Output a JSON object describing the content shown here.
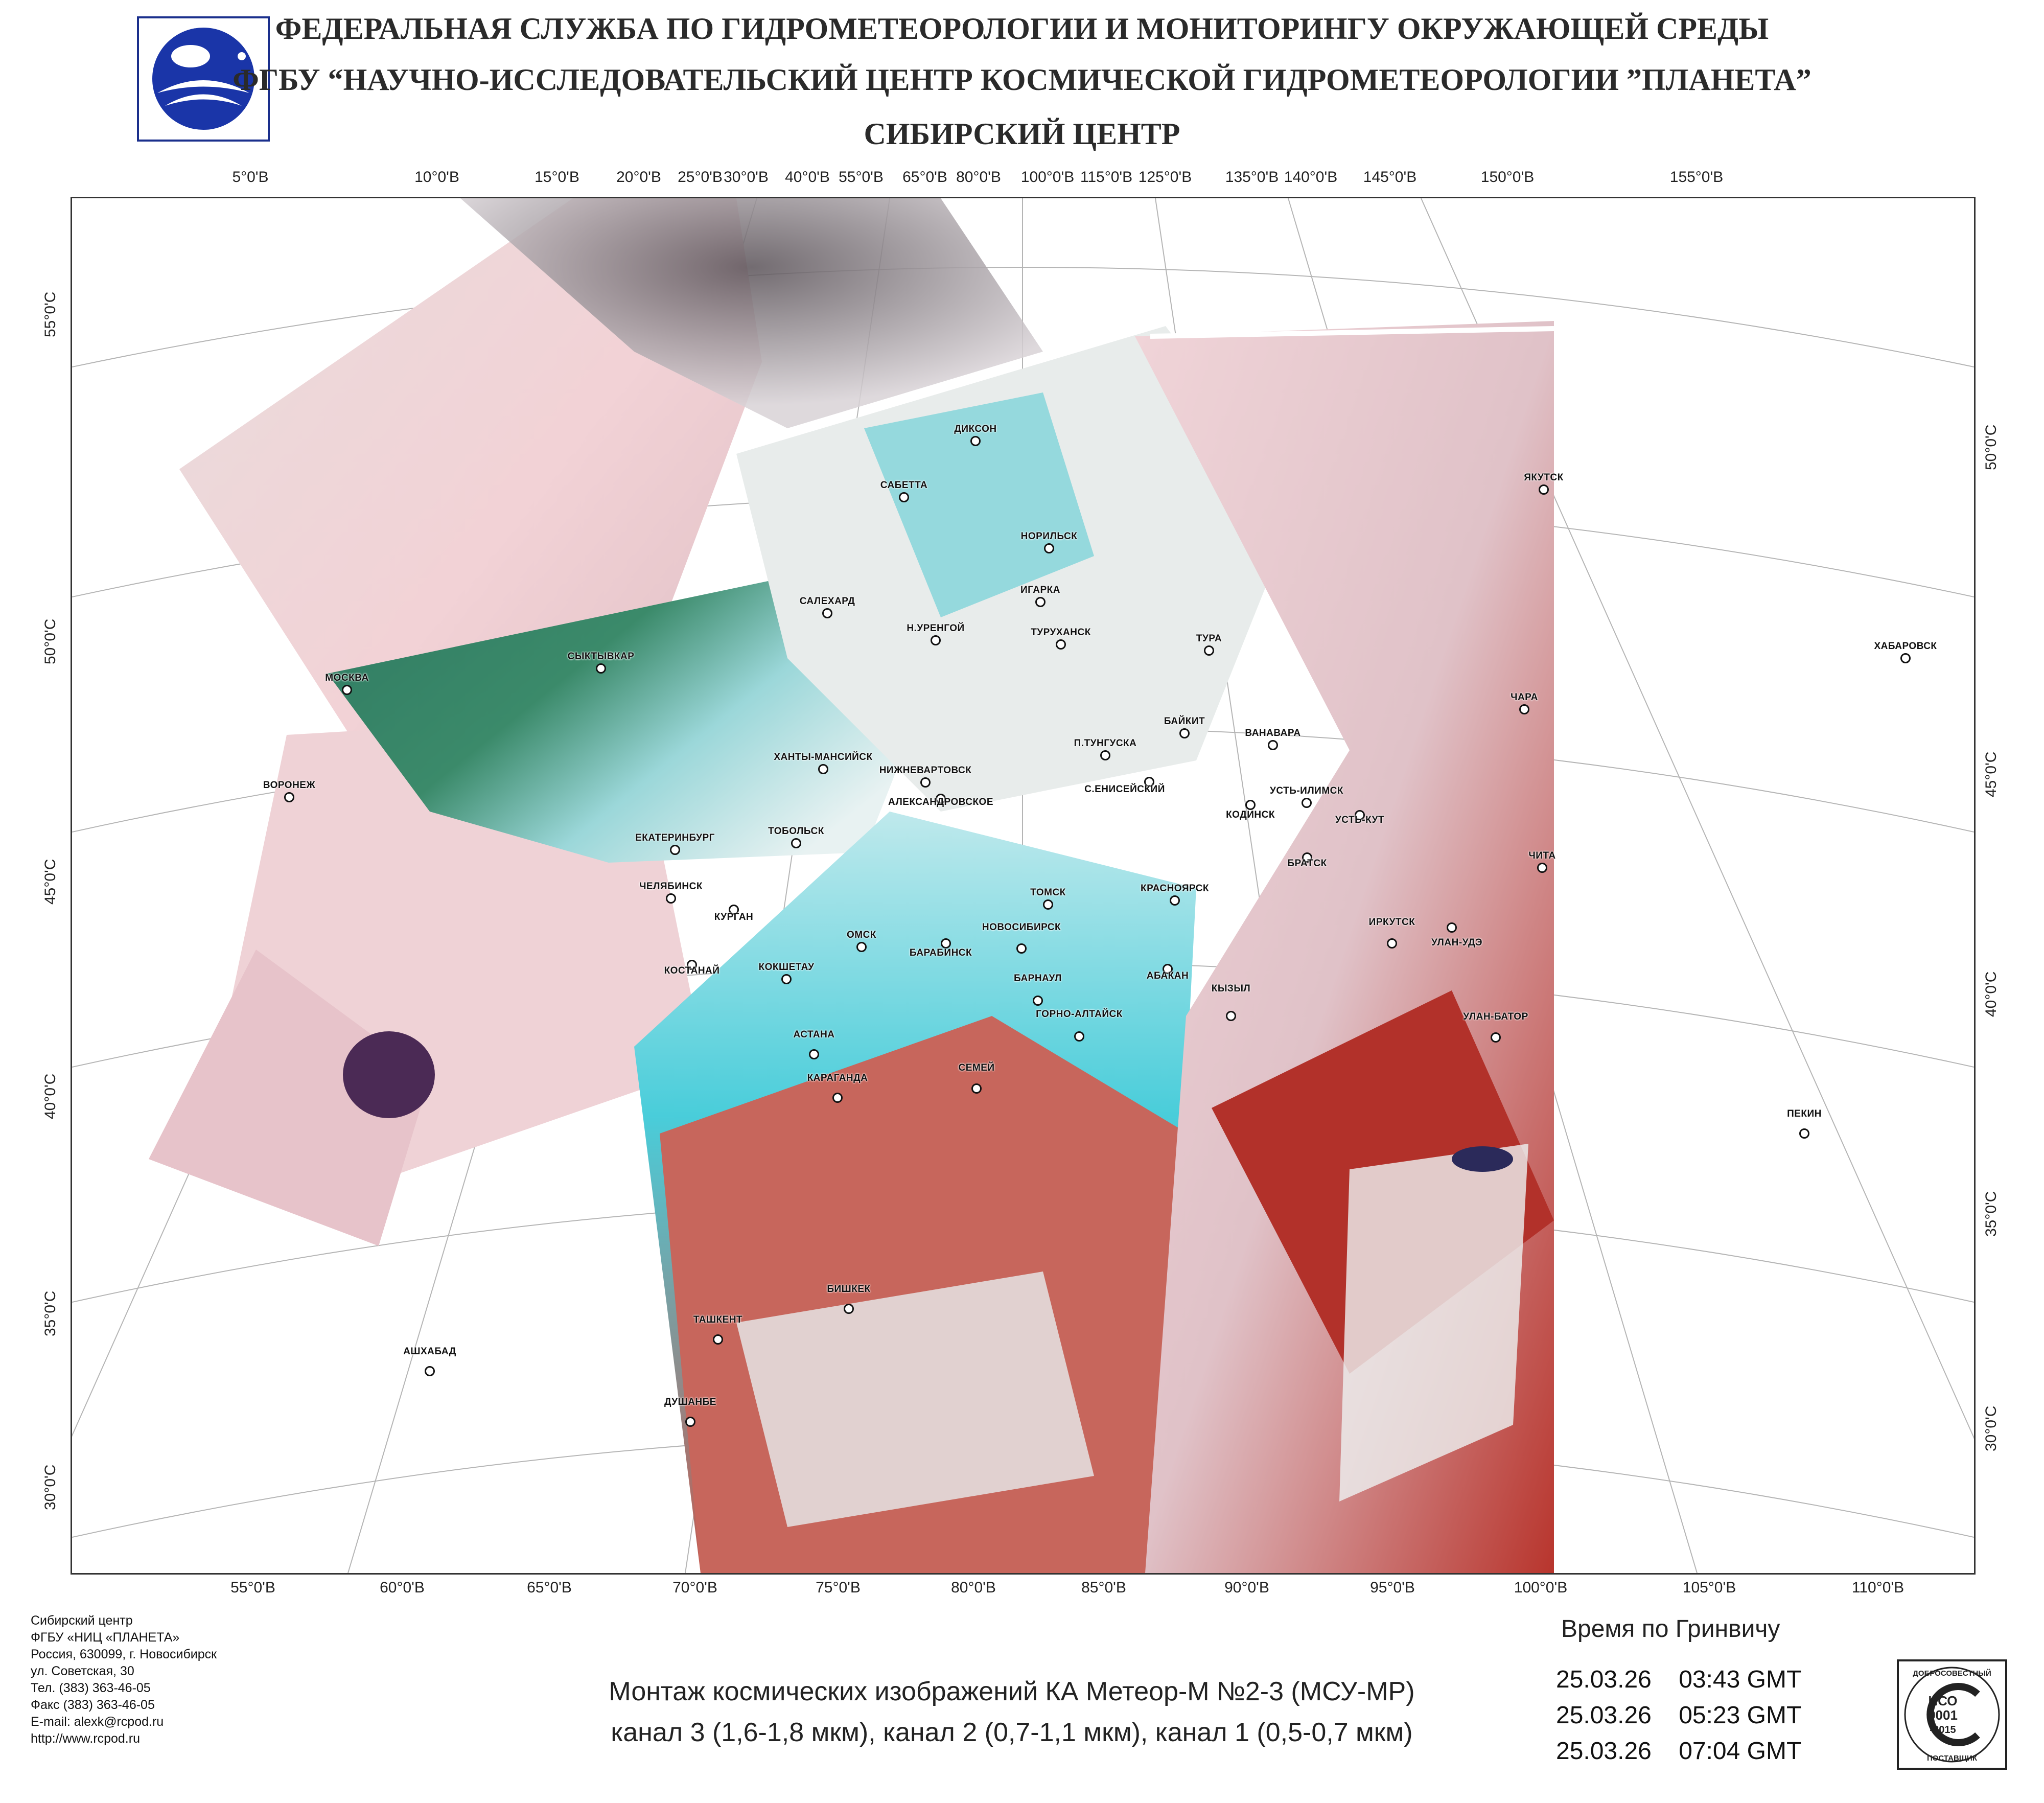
{
  "header": {
    "line1": "ФЕДЕРАЛЬНАЯ СЛУЖБА ПО ГИДРОМЕТЕОРОЛОГИИ И МОНИТОРИНГУ ОКРУЖАЮЩЕЙ СРЕДЫ",
    "line2": "ФГБУ “НАУЧНО-ИССЛЕДОВАТЕЛЬСКИЙ ЦЕНТР КОСМИЧЕСКОЙ ГИДРОМЕТЕОРОЛОГИИ ”ПЛАНЕТА”",
    "line3": "СИБИРСКИЙ  ЦЕНТР"
  },
  "map": {
    "top_ticks": [
      "5°0'В",
      "10°0'В",
      "15°0'В",
      "20°0'В",
      "25°0'В",
      "30°0'В",
      "40°0'В",
      "55°0'В",
      "65°0'В",
      "80°0'В",
      "100°0'В",
      "115°0'В",
      "125°0'В",
      "135°0'В",
      "140°0'В",
      "145°0'В",
      "150°0'В",
      "155°0'В"
    ],
    "bottom_ticks": [
      "55°0'В",
      "60°0'В",
      "65°0'В",
      "70°0'В",
      "75°0'В",
      "80°0'В",
      "85°0'В",
      "90°0'В",
      "95°0'В",
      "100°0'В",
      "105°0'В",
      "110°0'В"
    ],
    "left_ticks": [
      "55°0'С",
      "50°0'С",
      "45°0'С",
      "40°0'С",
      "35°0'С",
      "30°0'С"
    ],
    "right_ticks": [
      "50°0'С",
      "45°0'С",
      "40°0'С",
      "35°0'С",
      "30°0'С"
    ],
    "cities": [
      "ДИКСОН",
      "САБЕТТА",
      "НОРИЛЬСК",
      "ИГАРКА",
      "САЛЕХАРД",
      "Н.УРЕНГОЙ",
      "ТУРУХАНСК",
      "ТУРА",
      "ЯКУТСК",
      "МОСКВА",
      "СЫКТЫВКАР",
      "ВОРОНЕЖ",
      "ХАНТЫ-МАНСИЙСК",
      "НИЖНЕВАРТОВСК",
      "АЛЕКСАНДРОВСКОЕ",
      "П.ТУНГУСКА",
      "БАЙКИТ",
      "ВАНАВАРА",
      "С.ЕНИСЕЙСКИЙ",
      "КОДИНСК",
      "УСТЬ-ИЛИМСК",
      "УСТЬ-КУТ",
      "ЧАРА",
      "ХАБАРОВСК",
      "ЧИТА",
      "ЕКАТЕРИНБУРГ",
      "ТОБОЛЬСК",
      "ЧЕЛЯБИНСК",
      "КУРГАН",
      "ТОМСК",
      "КРАСНОЯРСК",
      "БРАТСК",
      "ОМСК",
      "НОВОСИБИРСК",
      "БАРАБИНСК",
      "КОСТАНАЙ",
      "КОКШЕТАУ",
      "ИРКУТСК",
      "УЛАН-УДЭ",
      "АБАКАН",
      "БАРНАУЛ",
      "КЫЗЫЛ",
      "ГОРНО-АЛТАЙСК",
      "УЛАН-БАТОР",
      "АСТАНА",
      "КАРАГАНДА",
      "СЕМЕЙ",
      "ПЕКИН",
      "БИШКЕК",
      "ТАШКЕНТ",
      "АШХАБАД",
      "ДУШАНБЕ"
    ]
  },
  "contact": {
    "lines": [
      "Сибирский центр",
      "ФГБУ «НИЦ «ПЛАНЕТА»",
      "Россия, 630099, г. Новосибирск",
      "ул. Советская, 30",
      "Тел. (383) 363-46-05",
      "Факс (383) 363-46-05",
      "E-mail: alexk@rcpod.ru",
      "http://www.rcpod.ru"
    ]
  },
  "caption": {
    "line1": "Монтаж космических изображений КА Метеор-М №2-3 (МСУ-МР)",
    "line2": "канал 3 (1,6-1,8 мкм), канал 2 (0,7-1,1 мкм), канал 1 (0,5-0,7 мкм)"
  },
  "time": {
    "title": "Время по Гринвичу",
    "entries": [
      "25.03.26    03:43 GMT",
      "25.03.26    05:23 GMT",
      "25.03.26    07:04 GMT"
    ]
  },
  "badge": {
    "top": "ДОБРОСОВЕСТНЫЙ",
    "iso1": "ИСО",
    "iso2": "9001",
    "iso3": "-2015",
    "bottom": "ПОСТАВЩИК"
  },
  "colors": {
    "cloud": "#f2dada",
    "cyan": "#47cbd8",
    "forest": "#3b7a5a",
    "desert": "#c8665a",
    "red": "#b32a22"
  }
}
